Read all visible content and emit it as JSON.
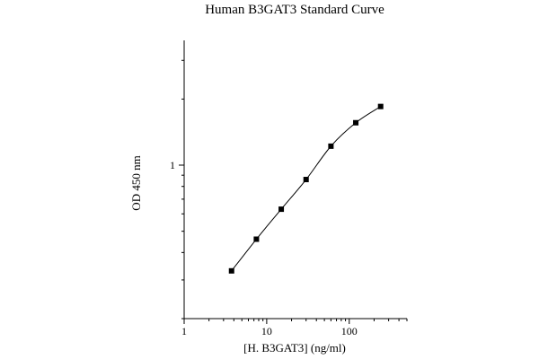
{
  "chart_data": {
    "type": "scatter",
    "title": "Human B3GAT3 Standard Curve",
    "xlabel": "[H. B3GAT3] (ng/ml)",
    "ylabel": "OD 450 nm",
    "xscale": "log",
    "yscale": "log",
    "xlim": [
      1,
      500
    ],
    "ylim": [
      0.2,
      3.7
    ],
    "x_ticks": [
      {
        "value": 1,
        "label": "1"
      },
      {
        "value": 10,
        "label": "10"
      },
      {
        "value": 100,
        "label": "100"
      }
    ],
    "y_ticks": [
      {
        "value": 1,
        "label": "1"
      }
    ],
    "grid": false,
    "fitted_curve": true,
    "series": [
      {
        "x": [
          3.75,
          7.5,
          15,
          30,
          60,
          120,
          240
        ],
        "y": [
          0.33,
          0.46,
          0.63,
          0.86,
          1.22,
          1.56,
          1.85
        ]
      }
    ],
    "colors": {
      "axis": "#000000",
      "marker": "#000000",
      "curve": "#000000"
    }
  }
}
